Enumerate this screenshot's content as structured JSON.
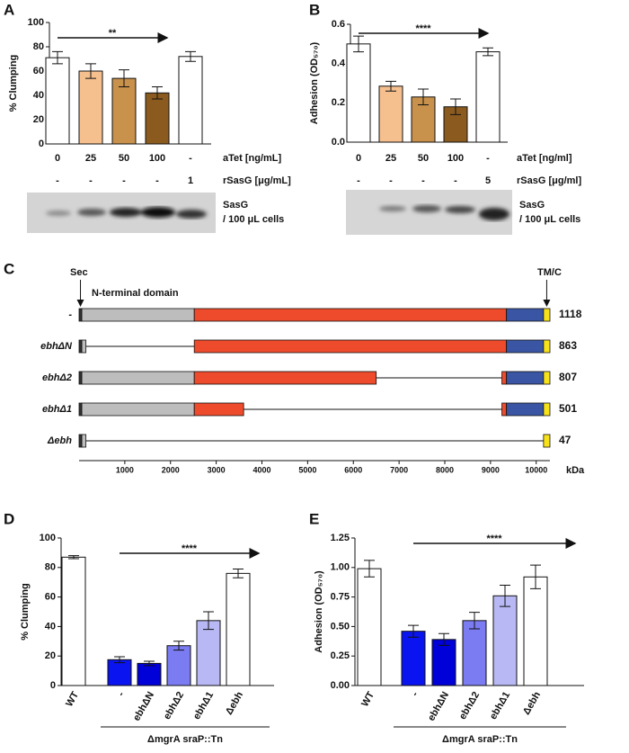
{
  "chart_data": [
    {
      "type": "bar",
      "panel": "A",
      "ylabel": "% Clumping",
      "ylim": [
        0,
        100
      ],
      "yticks": [
        0,
        20,
        40,
        60,
        80,
        100
      ],
      "categories": [
        "0",
        "25",
        "50",
        "100",
        "-"
      ],
      "xlabel": "aTet [ng/mL]",
      "rows": [
        {
          "name": "rSasG [μg/mL]",
          "labels": [
            "-",
            "-",
            "-",
            "-",
            "1"
          ]
        }
      ],
      "values": [
        71,
        60,
        54,
        42,
        72
      ],
      "errors": [
        5,
        6,
        7,
        5,
        4
      ],
      "colors": [
        "#ffffff",
        "#f6c08e",
        "#c8914c",
        "#8b5a1f",
        "#ffffff"
      ],
      "annotation": "**",
      "blot_label": [
        "SasG",
        "/ 100 μL cells"
      ]
    },
    {
      "type": "bar",
      "panel": "B",
      "ylabel": "Adhesion (OD₅₇₀)",
      "ylim": [
        0,
        0.6
      ],
      "yticks": [
        {
          "value": 0,
          "label": "0.0"
        },
        0.2,
        0.4,
        0.6
      ],
      "categories": [
        "0",
        "25",
        "50",
        "100",
        "-"
      ],
      "xlabel": "aTet [ng/ml]",
      "rows": [
        {
          "name": "rSasG [μg/ml]",
          "labels": [
            "-",
            "-",
            "-",
            "-",
            "5"
          ]
        }
      ],
      "values": [
        0.5,
        0.285,
        0.23,
        0.18,
        0.46
      ],
      "errors": [
        0.04,
        0.025,
        0.04,
        0.04,
        0.02
      ],
      "colors": [
        "#ffffff",
        "#f6c08e",
        "#c8914c",
        "#8b5a1f",
        "#ffffff"
      ],
      "annotation": "****",
      "blot_label": [
        "SasG",
        "/ 100 μL cells"
      ]
    },
    {
      "type": "domains",
      "panel": "C",
      "xlim": [
        0,
        10300
      ],
      "xticks": [
        1000,
        2000,
        3000,
        4000,
        5000,
        6000,
        7000,
        8000,
        9000,
        10000
      ],
      "xlabel": "kDa",
      "annotations": [
        "Sec",
        "N-terminal domain",
        "TM/C"
      ],
      "rows": [
        {
          "name": "-",
          "value": 1118,
          "segments": [
            {
              "start": 0,
              "end": 60,
              "color": "#333333"
            },
            {
              "start": 60,
              "end": 2520,
              "color": "#bdbdbd"
            },
            {
              "start": 2520,
              "end": 9350,
              "color": "#ee4a2c"
            },
            {
              "start": 9350,
              "end": 10160,
              "color": "#3a55a4"
            },
            {
              "start": 10160,
              "end": 10300,
              "color": "#f7e11b"
            }
          ]
        },
        {
          "name": "ebhΔN",
          "value": 863,
          "segments": [
            {
              "start": 0,
              "end": 60,
              "color": "#333333"
            },
            {
              "start": 60,
              "end": 150,
              "color": "#bdbdbd"
            },
            {
              "start": 2520,
              "end": 9350,
              "color": "#ee4a2c"
            },
            {
              "start": 9350,
              "end": 10160,
              "color": "#3a55a4"
            },
            {
              "start": 10160,
              "end": 10300,
              "color": "#f7e11b"
            }
          ]
        },
        {
          "name": "ebhΔ2",
          "value": 807,
          "segments": [
            {
              "start": 0,
              "end": 60,
              "color": "#333333"
            },
            {
              "start": 60,
              "end": 2520,
              "color": "#bdbdbd"
            },
            {
              "start": 2520,
              "end": 6500,
              "color": "#ee4a2c"
            },
            {
              "start": 9250,
              "end": 9350,
              "color": "#ee4a2c"
            },
            {
              "start": 9350,
              "end": 10160,
              "color": "#3a55a4"
            },
            {
              "start": 10160,
              "end": 10300,
              "color": "#f7e11b"
            }
          ]
        },
        {
          "name": "ebhΔ1",
          "value": 501,
          "segments": [
            {
              "start": 0,
              "end": 60,
              "color": "#333333"
            },
            {
              "start": 60,
              "end": 2520,
              "color": "#bdbdbd"
            },
            {
              "start": 2520,
              "end": 3600,
              "color": "#ee4a2c"
            },
            {
              "start": 9250,
              "end": 9350,
              "color": "#ee4a2c"
            },
            {
              "start": 9350,
              "end": 10160,
              "color": "#3a55a4"
            },
            {
              "start": 10160,
              "end": 10300,
              "color": "#f7e11b"
            }
          ]
        },
        {
          "name": "Δebh",
          "value": 47,
          "segments": [
            {
              "start": 0,
              "end": 60,
              "color": "#333333"
            },
            {
              "start": 60,
              "end": 150,
              "color": "#bdbdbd"
            },
            {
              "start": 10160,
              "end": 10300,
              "color": "#f7e11b"
            }
          ]
        }
      ]
    },
    {
      "type": "bar",
      "panel": "D",
      "ylabel": "% Clumping",
      "ylim": [
        0,
        100
      ],
      "yticks": [
        0,
        20,
        40,
        60,
        80,
        100
      ],
      "categories": [
        "WT",
        "-",
        "ebhΔN",
        "ebhΔ2",
        "ebhΔ1",
        "Δebh"
      ],
      "values": [
        87,
        17.5,
        15,
        27,
        44,
        76
      ],
      "errors": [
        1,
        2,
        1.5,
        3,
        6,
        3
      ],
      "colors": [
        "#ffffff",
        "#0a14f0",
        "#0000d8",
        "#7b7cf2",
        "#b8b8f4",
        "#ffffff"
      ],
      "annotation": "****",
      "group_label": "ΔmgrA sraP::Tn"
    },
    {
      "type": "bar",
      "panel": "E",
      "ylabel": "Adhesion (OD₅₇₀)",
      "ylim": [
        0,
        1.25
      ],
      "yticks": [
        {
          "value": 0,
          "label": "0.00"
        },
        0.25,
        {
          "value": 0.5,
          "label": "0.50"
        },
        0.75,
        {
          "value": 1,
          "label": "1.00"
        },
        1.25
      ],
      "categories": [
        "WT",
        "-",
        "ebhΔN",
        "ebhΔ2",
        "ebhΔ1",
        "Δebh"
      ],
      "values": [
        0.99,
        0.46,
        0.39,
        0.55,
        0.76,
        0.92
      ],
      "errors": [
        0.07,
        0.05,
        0.05,
        0.07,
        0.09,
        0.1
      ],
      "colors": [
        "#ffffff",
        "#0a14f0",
        "#0000d8",
        "#7b7cf2",
        "#b8b8f4",
        "#ffffff"
      ],
      "annotation": "****",
      "group_label": "ΔmgrA sraP::Tn"
    }
  ]
}
